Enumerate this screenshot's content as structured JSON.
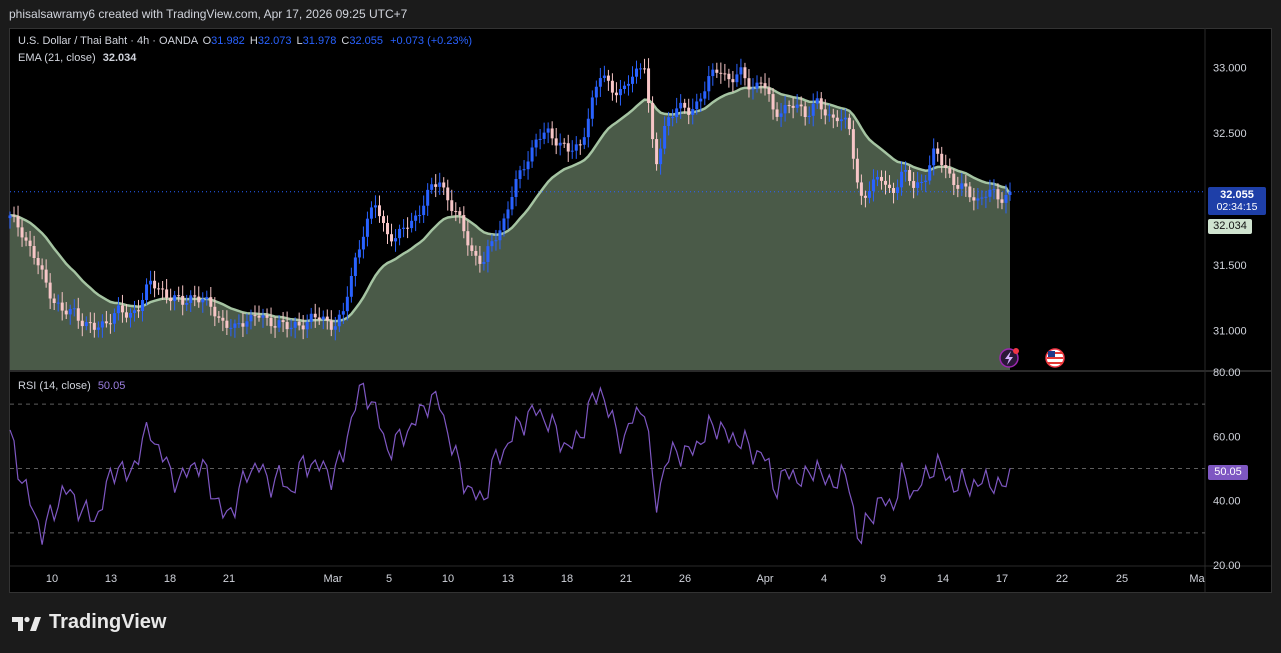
{
  "header": {
    "attribution": "phisalsawramy6 created with TradingView.com, Apr 17, 2026 09:25 UTC+7"
  },
  "legend": {
    "symbol": "U.S. Dollar / Thai Baht · 4h · OANDA",
    "open_label": "O",
    "open": "31.982",
    "high_label": "H",
    "high": "32.073",
    "low_label": "L",
    "low": "31.978",
    "close_label": "C",
    "close": "32.055",
    "change": "+0.073 (+0.23%)",
    "ema_label": "EMA (21, close)",
    "ema_value": "32.034",
    "rsi_label": "RSI (14, close)",
    "rsi_value": "50.05"
  },
  "price_tag": {
    "price": "32.055",
    "countdown": "02:34:15"
  },
  "ema_tag": "32.034",
  "rsi_tag": "50.05",
  "brand": {
    "name": "TradingView"
  },
  "colors": {
    "up": "#2962ff",
    "down": "#f7c6c7",
    "ema_fill": "#4a5a48",
    "ema_line": "#a5c4a2",
    "rsi_line": "#7e57c2",
    "background": "#000000"
  },
  "icons": [
    "lightning-icon",
    "us-flag-icon",
    "tradingview-logo-icon"
  ],
  "chart_data": [
    {
      "type": "candlestick",
      "title": "U.S. Dollar / Thai Baht · 4h · OANDA",
      "y_axis_ticks": [
        "33.000",
        "32.500",
        "31.500",
        "31.000"
      ],
      "ylim": [
        30.7,
        33.3
      ],
      "x_axis_ticks": [
        "10",
        "13",
        "18",
        "21",
        "Mar",
        "5",
        "10",
        "13",
        "18",
        "21",
        "26",
        "Apr",
        "4",
        "9",
        "14",
        "17",
        "22",
        "25",
        "Ma"
      ],
      "close_path": [
        31.85,
        31.78,
        31.6,
        31.42,
        31.25,
        31.12,
        31.15,
        31.05,
        31.0,
        31.08,
        31.15,
        31.1,
        31.2,
        31.35,
        31.32,
        31.25,
        31.2,
        31.28,
        31.22,
        31.15,
        31.05,
        31.0,
        31.1,
        31.12,
        31.05,
        31.08,
        31.0,
        31.05,
        31.1,
        31.08,
        31.05,
        31.12,
        31.5,
        31.8,
        31.95,
        31.75,
        31.7,
        31.8,
        31.9,
        32.05,
        32.15,
        31.95,
        31.8,
        31.6,
        31.5,
        31.7,
        31.85,
        32.1,
        32.3,
        32.45,
        32.5,
        32.45,
        32.35,
        32.4,
        32.7,
        32.95,
        32.85,
        32.8,
        32.95,
        33.05,
        32.2,
        32.6,
        32.7,
        32.65,
        32.75,
        32.9,
        33.0,
        32.9,
        32.95,
        32.85,
        32.9,
        32.65,
        32.7,
        32.7,
        32.65,
        32.75,
        32.6,
        32.65,
        32.55,
        32.0,
        32.1,
        32.15,
        32.05,
        32.2,
        32.1,
        32.15,
        32.35,
        32.25,
        32.1,
        32.05,
        32.0,
        32.05,
        32.0,
        32.06
      ],
      "ema": [
        {
          "name": "EMA (21, close)",
          "last": 32.034
        }
      ],
      "last_close": 32.055
    },
    {
      "type": "line",
      "title": "RSI (14, close)",
      "y_axis_ticks": [
        "80.00",
        "60.00",
        "40.00",
        "20.00"
      ],
      "ylim": [
        20,
        80
      ],
      "bands": [
        70,
        50,
        30
      ],
      "series": [
        {
          "name": "RSI (14, close)",
          "values": [
            60,
            48,
            38,
            30,
            36,
            44,
            40,
            36,
            34,
            44,
            52,
            46,
            56,
            62,
            55,
            48,
            46,
            52,
            50,
            42,
            34,
            40,
            48,
            52,
            45,
            48,
            42,
            50,
            52,
            50,
            48,
            54,
            70,
            75,
            68,
            56,
            58,
            62,
            66,
            72,
            70,
            58,
            48,
            42,
            40,
            52,
            56,
            62,
            66,
            68,
            65,
            60,
            56,
            60,
            70,
            75,
            64,
            58,
            66,
            70,
            38,
            52,
            56,
            54,
            58,
            62,
            64,
            58,
            60,
            54,
            56,
            44,
            48,
            48,
            46,
            52,
            44,
            48,
            46,
            26,
            36,
            40,
            38,
            48,
            42,
            46,
            52,
            48,
            44,
            46,
            44,
            48,
            42,
            50.05
          ]
        }
      ],
      "last_value": 50.05
    }
  ]
}
